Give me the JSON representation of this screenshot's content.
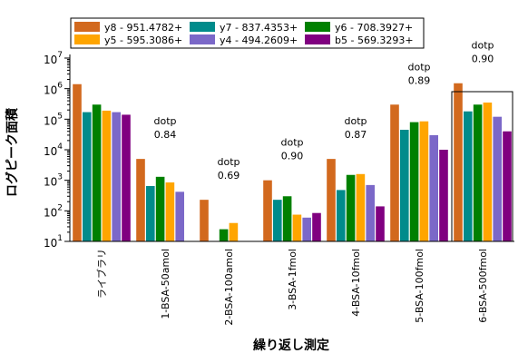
{
  "chart_data": {
    "type": "bar",
    "xlabel": "繰り返し測定",
    "ylabel": "ログピーク面積",
    "yscale": "log",
    "ylim": [
      10,
      10000000
    ],
    "categories": [
      "ライブラリ",
      "1-BSA-50amol",
      "2-BSA-100amol",
      "3-BSA-1fmol",
      "4-BSA-10fmol",
      "5-BSA-100fmol",
      "6-BSA-500fmol"
    ],
    "series": [
      {
        "name": "y8 - 951.4782+",
        "color": "#D2691E",
        "values": [
          1400000,
          5000,
          230,
          1000,
          5000,
          300000,
          1500000
        ]
      },
      {
        "name": "y7 - 837.4353+",
        "color": "#008B8B",
        "values": [
          170000,
          650,
          null,
          230,
          480,
          45000,
          180000
        ]
      },
      {
        "name": "y6 - 708.3927+",
        "color": "#008000",
        "values": [
          300000,
          1300,
          25,
          300,
          1500,
          80000,
          300000
        ]
      },
      {
        "name": "y5 - 595.3086+",
        "color": "#FFA500",
        "values": [
          190000,
          850,
          40,
          75,
          1600,
          85000,
          350000
        ]
      },
      {
        "name": "y4 - 494.2609+",
        "color": "#7B68C8",
        "values": [
          170000,
          420,
          null,
          60,
          700,
          30000,
          120000
        ]
      },
      {
        "name": "b5 - 569.3293+",
        "color": "#800080",
        "values": [
          140000,
          null,
          null,
          85,
          140,
          10000,
          40000
        ]
      }
    ],
    "annotations": [
      {
        "category": "ライブラリ",
        "dotp_label": "",
        "dotp_value": ""
      },
      {
        "category": "1-BSA-50amol",
        "dotp_label": "dotp",
        "dotp_value": "0.84"
      },
      {
        "category": "2-BSA-100amol",
        "dotp_label": "dotp",
        "dotp_value": "0.69"
      },
      {
        "category": "3-BSA-1fmol",
        "dotp_label": "dotp",
        "dotp_value": "0.90"
      },
      {
        "category": "4-BSA-10fmol",
        "dotp_label": "dotp",
        "dotp_value": "0.87"
      },
      {
        "category": "5-BSA-100fmol",
        "dotp_label": "dotp",
        "dotp_value": "0.89"
      },
      {
        "category": "6-BSA-500fmol",
        "dotp_label": "dotp",
        "dotp_value": "0.90"
      }
    ],
    "selected_category": "6-BSA-500fmol",
    "legend": {
      "placement": "top",
      "columns": 3
    }
  }
}
